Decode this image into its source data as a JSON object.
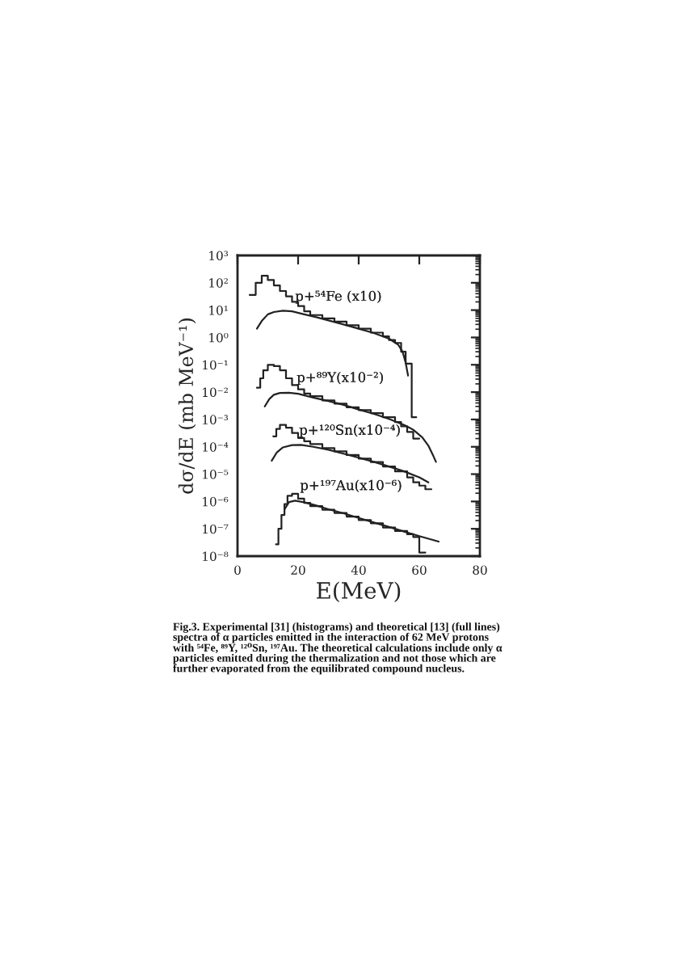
{
  "chart_data": {
    "type": "line",
    "xlabel": "E(MeV)",
    "ylabel": "dσ/dE (mb MeV⁻¹)",
    "xlim": [
      0,
      80
    ],
    "xticks": [
      0,
      20,
      40,
      60,
      80
    ],
    "ylim": [
      1e-08,
      1000
    ],
    "yticks": [
      {
        "value": 1e-08,
        "label": "10⁻⁸"
      },
      {
        "value": 1e-07,
        "label": "10⁻⁷"
      },
      {
        "value": 1e-06,
        "label": "10⁻⁶"
      },
      {
        "value": 1e-05,
        "label": "10⁻⁵"
      },
      {
        "value": 0.0001,
        "label": "10⁻⁴"
      },
      {
        "value": 0.001,
        "label": "10⁻³"
      },
      {
        "value": 0.01,
        "label": "10⁻²"
      },
      {
        "value": 0.1,
        "label": "10⁻¹"
      },
      {
        "value": 1,
        "label": "10⁰"
      },
      {
        "value": 10,
        "label": "10¹"
      },
      {
        "value": 100,
        "label": "10²"
      },
      {
        "value": 1000,
        "label": "10³"
      }
    ],
    "log": "y",
    "grid": false,
    "marker": "none",
    "line_style": "solid",
    "series": [
      {
        "type": "step",
        "color": "#222222",
        "x": [
          4,
          6,
          8,
          10,
          12,
          14,
          16,
          18,
          20,
          22,
          24,
          28,
          32,
          36,
          40,
          44,
          48,
          50,
          52,
          54,
          55.5,
          57.5,
          59
        ],
        "values": [
          36,
          100,
          180,
          126,
          80,
          50,
          32,
          20,
          14,
          9,
          6.6,
          5,
          3.8,
          2.8,
          2.1,
          1.5,
          1.1,
          0.8,
          0.63,
          0.3,
          0.11,
          0.0012,
          0.0012
        ]
      },
      {
        "type": "line",
        "color": "#222222",
        "x": [
          6.4,
          8,
          10,
          12,
          15,
          18,
          22,
          26,
          30,
          35,
          40,
          45,
          50,
          53,
          54.5,
          55.5,
          56.3
        ],
        "values": [
          2.1,
          4,
          7,
          8.5,
          9.5,
          9,
          7,
          5.5,
          4.2,
          3,
          2.1,
          1.45,
          0.9,
          0.55,
          0.3,
          0.12,
          0.04
        ]
      },
      {
        "type": "step",
        "color": "#222222",
        "x": [
          6.4,
          7.5,
          8.5,
          10,
          12,
          14,
          16,
          18,
          20,
          22,
          24,
          28,
          32,
          36,
          40,
          44,
          48,
          52,
          54,
          56,
          58,
          60
        ],
        "values": [
          0.0145,
          0.032,
          0.063,
          0.1,
          0.089,
          0.063,
          0.032,
          0.018,
          0.0126,
          0.0089,
          0.0071,
          0.005,
          0.0038,
          0.0028,
          0.0022,
          0.0017,
          0.0012,
          0.0008,
          0.00056,
          0.00035,
          0.0002,
          0.0002
        ]
      },
      {
        "type": "line",
        "color": "#222222",
        "x": [
          9,
          10.5,
          12,
          14,
          17,
          20,
          25,
          30,
          35,
          40,
          45,
          50,
          55,
          58,
          61,
          63,
          64.5,
          65.5
        ],
        "values": [
          0.003,
          0.0056,
          0.008,
          0.0093,
          0.0095,
          0.0087,
          0.0063,
          0.0047,
          0.0034,
          0.0023,
          0.0016,
          0.00105,
          0.00063,
          0.00042,
          0.00022,
          0.00011,
          5e-05,
          2.8e-05
        ]
      },
      {
        "type": "step",
        "color": "#222222",
        "x": [
          11.8,
          12.8,
          14,
          16,
          18,
          20,
          22,
          24,
          28,
          32,
          36,
          40,
          44,
          48,
          52,
          56,
          58,
          60,
          62,
          64
        ],
        "values": [
          0.00024,
          0.00045,
          0.00063,
          0.0005,
          0.00032,
          0.00021,
          0.00016,
          0.000126,
          8.9e-05,
          6.8e-05,
          5e-05,
          3.7e-05,
          2.75e-05,
          1.9e-05,
          1.26e-05,
          7.6e-06,
          5e-06,
          3.8e-06,
          2.8e-06,
          2.8e-06
        ]
      },
      {
        "type": "line",
        "color": "#222222",
        "x": [
          11.3,
          13,
          15,
          18,
          21,
          25,
          30,
          35,
          40,
          45,
          50,
          55,
          60,
          63
        ],
        "values": [
          3.1e-05,
          6.3e-05,
          9.5e-05,
          0.000115,
          0.000117,
          0.0001,
          7.8e-05,
          5.6e-05,
          4e-05,
          2.8e-05,
          1.9e-05,
          1.26e-05,
          7.6e-06,
          5e-06
        ]
      },
      {
        "type": "step",
        "color": "#222222",
        "x": [
          12.7,
          13.5,
          14.5,
          15.5,
          16.5,
          18,
          20,
          22,
          24,
          28,
          32,
          36,
          40,
          44,
          48,
          52,
          56,
          58,
          60,
          62
        ],
        "values": [
          2.7e-08,
          1e-07,
          3.2e-07,
          8e-07,
          1.6e-06,
          1.9e-06,
          1.26e-06,
          8.9e-07,
          6.8e-07,
          5e-07,
          3.8e-07,
          2.8e-07,
          2.1e-07,
          1.6e-07,
          1.12e-07,
          8.3e-08,
          6.3e-08,
          5e-08,
          1.35e-08,
          1.35e-08
        ]
      },
      {
        "type": "line",
        "color": "#222222",
        "x": [
          15.5,
          17,
          19,
          22,
          26,
          30,
          35,
          40,
          45,
          50,
          55,
          60,
          66.4
        ],
        "values": [
          5.1e-07,
          9.5e-07,
          1.07e-06,
          9.3e-07,
          7.1e-07,
          5.2e-07,
          3.7e-07,
          2.5e-07,
          1.7e-07,
          1.17e-07,
          7.9e-08,
          5.4e-08,
          3.4e-08
        ]
      }
    ],
    "annotations": [
      {
        "text": "p+⁵⁴Fe (x10)",
        "x": 19,
        "y": 30
      },
      {
        "text": "p+⁸⁹Y(x10⁻²)",
        "x": 19.5,
        "y": 0.032
      },
      {
        "text": "p+¹²⁰Sn(x10⁻⁴)",
        "x": 20.3,
        "y": 0.00038
      },
      {
        "text": "p+¹⁹⁷Au(x10⁻⁶)",
        "x": 20.6,
        "y": 3.6e-06
      },
      "Fig.3. Experimental [31] (histograms) and theoretical [13] (full lines) spectra of α particles emitted in the interaction of 62 MeV protons with ⁵⁴Fe, ⁸⁹Y, ¹²⁰Sn, ¹⁹⁷Au. The theoretical calculations include only α particles emitted during the thermalization and not those which are further evaporated from the equilibrated compound nucleus."
    ]
  }
}
